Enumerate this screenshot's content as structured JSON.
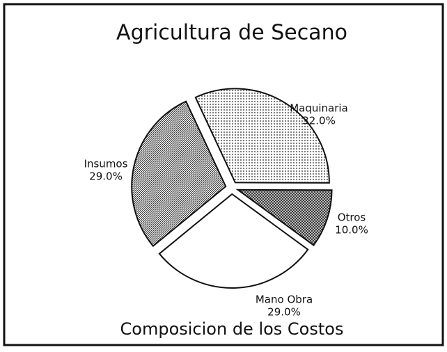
{
  "chart_data": {
    "type": "pie",
    "title": "Agricultura de Secano",
    "subtitle": "Composicion de los Costos",
    "categories": [
      "Maquinaria",
      "Otros",
      "Mano Obra",
      "Insumos"
    ],
    "values": [
      32,
      10,
      29,
      29
    ],
    "value_labels": [
      "32.0%",
      "10.0%",
      "29.0%",
      "29.0%"
    ]
  }
}
